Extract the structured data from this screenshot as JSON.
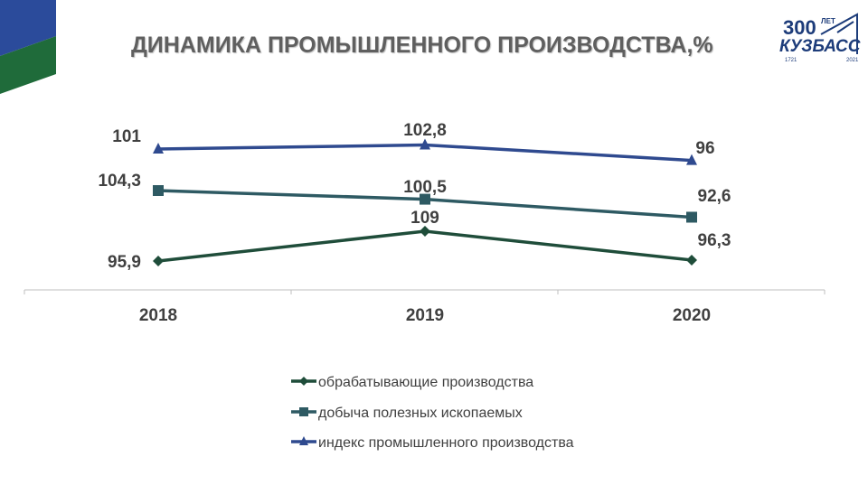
{
  "title": "ДИНАМИКА ПРОМЫШЛЕННОГО ПРОИЗВОДСТВА,%",
  "logo": {
    "number": "300",
    "superscript": "ЛЕТ",
    "name": "КУЗБАСС",
    "year_start": "1721",
    "year_end": "2021",
    "color": "#1d3c7a"
  },
  "colors": {
    "corner_blue": "#2b4b9b",
    "corner_green": "#1f6b3a"
  },
  "chart_data": {
    "type": "line",
    "categories": [
      "2018",
      "2019",
      "2020"
    ],
    "series": [
      {
        "name": "обрабатывающие производства",
        "values": [
          95.9,
          109,
          96.3
        ],
        "labels": [
          "95,9",
          "109",
          "96,3"
        ],
        "color": "#1f4d3a",
        "marker": "diamond"
      },
      {
        "name": "добыча полезных ископаемых",
        "values": [
          104.3,
          100.5,
          92.6
        ],
        "labels": [
          "104,3",
          "100,5",
          "92,6"
        ],
        "color": "#2e5a63",
        "marker": "square"
      },
      {
        "name": "индекс промышленного производства",
        "values": [
          101,
          102.8,
          96
        ],
        "labels": [
          "101",
          "102,8",
          "96"
        ],
        "color": "#2f4a8f",
        "marker": "triangle"
      }
    ],
    "legend_position": "bottom",
    "grid": false
  }
}
